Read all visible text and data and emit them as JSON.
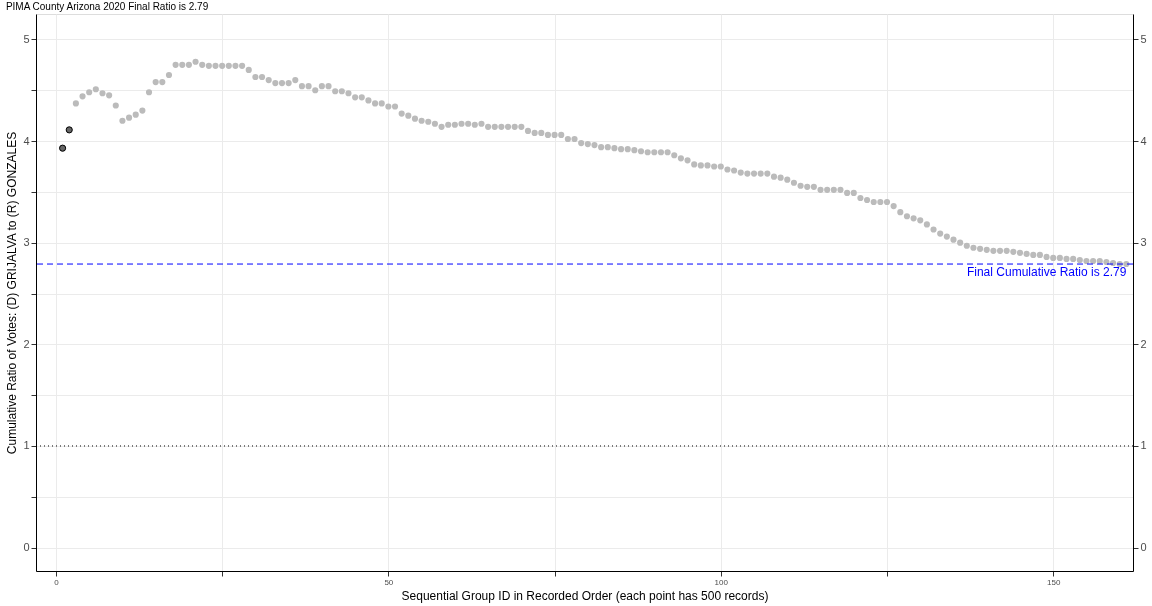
{
  "chart_data": {
    "type": "scatter",
    "title": "PIMA County Arizona 2020        Final Ratio is 2.79",
    "xlabel": "Sequential Group ID in Recorded Order (each point has 500 records)",
    "ylabel": "Cumulative Ratio of Votes:   (D) GRIJALVA  to  (R) GONZALES",
    "series": [
      {
        "color": "#666666",
        "x": [
          1,
          2
        ],
        "values": [
          3.93,
          4.11
        ]
      },
      {
        "color": "#bbbbbb",
        "x": [
          3,
          4,
          5,
          6,
          7,
          8,
          9,
          10,
          11,
          12,
          13,
          14,
          15,
          16,
          17,
          18,
          19,
          20,
          21,
          22,
          23,
          24,
          25,
          26,
          27,
          28,
          29,
          30,
          31,
          32,
          33,
          34,
          35,
          36,
          37,
          38,
          39,
          40,
          41,
          42,
          43,
          44,
          45,
          46,
          47,
          48,
          49,
          50,
          51,
          52,
          53,
          54,
          55,
          56,
          57,
          58,
          59,
          60,
          61,
          62,
          63,
          64,
          65,
          66,
          67,
          68,
          69,
          70,
          71,
          72,
          73,
          74,
          75,
          76,
          77,
          78,
          79,
          80,
          81,
          82,
          83,
          84,
          85,
          86,
          87,
          88,
          89,
          90,
          91,
          92,
          93,
          94,
          95,
          96,
          97,
          98,
          99,
          100,
          101,
          102,
          103,
          104,
          105,
          106,
          107,
          108,
          109,
          110,
          111,
          112,
          113,
          114,
          115,
          116,
          117,
          118,
          119,
          120,
          121,
          122,
          123,
          124,
          125,
          126,
          127,
          128,
          129,
          130,
          131,
          132,
          133,
          134,
          135,
          136,
          137,
          138,
          139,
          140,
          141,
          142,
          143,
          144,
          145,
          146,
          147,
          148,
          149,
          150,
          151,
          152,
          153,
          154,
          155,
          156,
          157,
          158,
          159,
          160,
          161
        ],
        "values": [
          4.37,
          4.44,
          4.48,
          4.51,
          4.47,
          4.45,
          4.35,
          4.2,
          4.23,
          4.26,
          4.3,
          4.48,
          4.58,
          4.58,
          4.65,
          4.75,
          4.75,
          4.75,
          4.78,
          4.75,
          4.74,
          4.74,
          4.74,
          4.74,
          4.74,
          4.74,
          4.7,
          4.63,
          4.63,
          4.6,
          4.57,
          4.57,
          4.57,
          4.6,
          4.54,
          4.54,
          4.5,
          4.54,
          4.54,
          4.49,
          4.49,
          4.47,
          4.43,
          4.43,
          4.4,
          4.37,
          4.37,
          4.34,
          4.34,
          4.27,
          4.25,
          4.22,
          4.2,
          4.19,
          4.17,
          4.14,
          4.16,
          4.16,
          4.17,
          4.17,
          4.16,
          4.17,
          4.14,
          4.14,
          4.14,
          4.14,
          4.14,
          4.14,
          4.1,
          4.08,
          4.08,
          4.06,
          4.06,
          4.06,
          4.02,
          4.02,
          3.98,
          3.97,
          3.96,
          3.94,
          3.94,
          3.93,
          3.92,
          3.92,
          3.91,
          3.9,
          3.89,
          3.89,
          3.89,
          3.89,
          3.86,
          3.83,
          3.81,
          3.77,
          3.76,
          3.76,
          3.75,
          3.75,
          3.72,
          3.71,
          3.69,
          3.68,
          3.68,
          3.68,
          3.68,
          3.65,
          3.64,
          3.62,
          3.59,
          3.56,
          3.55,
          3.55,
          3.52,
          3.52,
          3.52,
          3.52,
          3.49,
          3.49,
          3.44,
          3.42,
          3.4,
          3.4,
          3.4,
          3.36,
          3.3,
          3.26,
          3.24,
          3.22,
          3.18,
          3.13,
          3.09,
          3.06,
          3.03,
          3.0,
          2.97,
          2.95,
          2.94,
          2.93,
          2.92,
          2.92,
          2.92,
          2.91,
          2.9,
          2.89,
          2.88,
          2.88,
          2.86,
          2.85,
          2.85,
          2.84,
          2.84,
          2.83,
          2.82,
          2.82,
          2.82,
          2.81,
          2.8,
          2.79,
          2.79
        ]
      }
    ],
    "xlim": [
      -3,
      162
    ],
    "xticks": [
      0,
      {
        "value": 25,
        "label": null
      },
      50,
      {
        "value": 75,
        "label": null
      },
      100,
      {
        "value": 125,
        "label": null
      },
      150
    ],
    "ylim": [
      -0.23,
      5.25
    ],
    "yticks": [
      0,
      {
        "value": 0.5,
        "label": null
      },
      1,
      {
        "value": 1.5,
        "label": null
      },
      2,
      {
        "value": 2.5,
        "label": null
      },
      3,
      {
        "value": 3.5,
        "label": null
      },
      4,
      {
        "value": 4.5,
        "label": null
      },
      5
    ],
    "y2lim": [
      -0.23,
      5.25
    ],
    "y2ticks": [
      0,
      1,
      2,
      3,
      4,
      5
    ],
    "ref_lines": [
      {
        "axis": "y",
        "value": 2.79,
        "label": "Final Cumulative Ratio is 2.79",
        "color": "#0000ff",
        "line_style": "dashed"
      },
      {
        "axis": "y",
        "value": 1,
        "label": null,
        "color": "#000000",
        "line_style": "dotted"
      }
    ],
    "grid": true,
    "marker": "circle"
  }
}
